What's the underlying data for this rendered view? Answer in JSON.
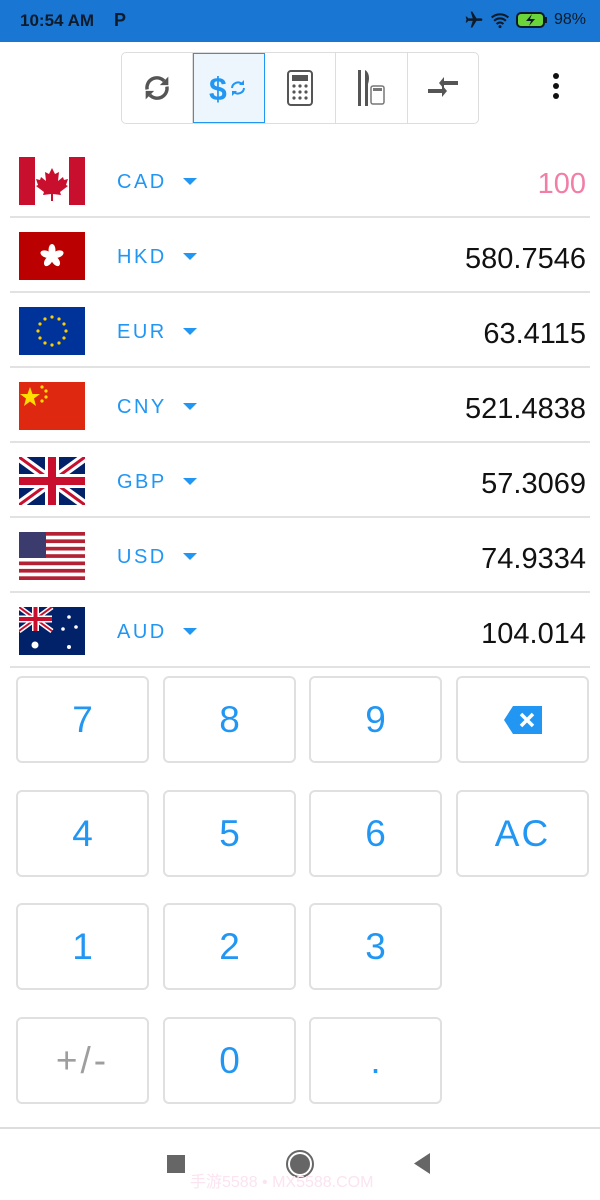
{
  "status_bar": {
    "time": "10:54 AM",
    "app_indicator": "P",
    "battery": "98%",
    "icons": [
      "airplane-icon",
      "wifi-icon",
      "battery-charging-icon"
    ]
  },
  "toolbar": {
    "buttons": [
      {
        "icon": "refresh-icon",
        "active": false
      },
      {
        "icon": "currency-convert-icon",
        "active": true
      },
      {
        "icon": "calculator-icon",
        "active": false
      },
      {
        "icon": "restaurant-tip-icon",
        "active": false
      },
      {
        "icon": "compress-icon",
        "active": false
      }
    ],
    "menu_icon": "more-vert-icon"
  },
  "currencies": [
    {
      "code": "CAD",
      "value": "100",
      "flag": "canada"
    },
    {
      "code": "HKD",
      "value": "580.7546",
      "flag": "hong-kong"
    },
    {
      "code": "EUR",
      "value": "63.4115",
      "flag": "eu"
    },
    {
      "code": "CNY",
      "value": "521.4838",
      "flag": "china"
    },
    {
      "code": "GBP",
      "value": "57.3069",
      "flag": "uk"
    },
    {
      "code": "USD",
      "value": "74.9334",
      "flag": "usa"
    },
    {
      "code": "AUD",
      "value": "104.014",
      "flag": "australia"
    }
  ],
  "keypad": {
    "k7": "7",
    "k8": "8",
    "k9": "9",
    "k4": "4",
    "k5": "5",
    "k6": "6",
    "clear": "AC",
    "k1": "1",
    "k2": "2",
    "k3": "3",
    "sign": "+/-",
    "k0": "0",
    "dot": "."
  },
  "colors": {
    "accent": "#2196F3",
    "input_value": "#F27DA6",
    "status_bar": "#1976D2"
  },
  "watermark": "手游5588 • MX5588.COM"
}
